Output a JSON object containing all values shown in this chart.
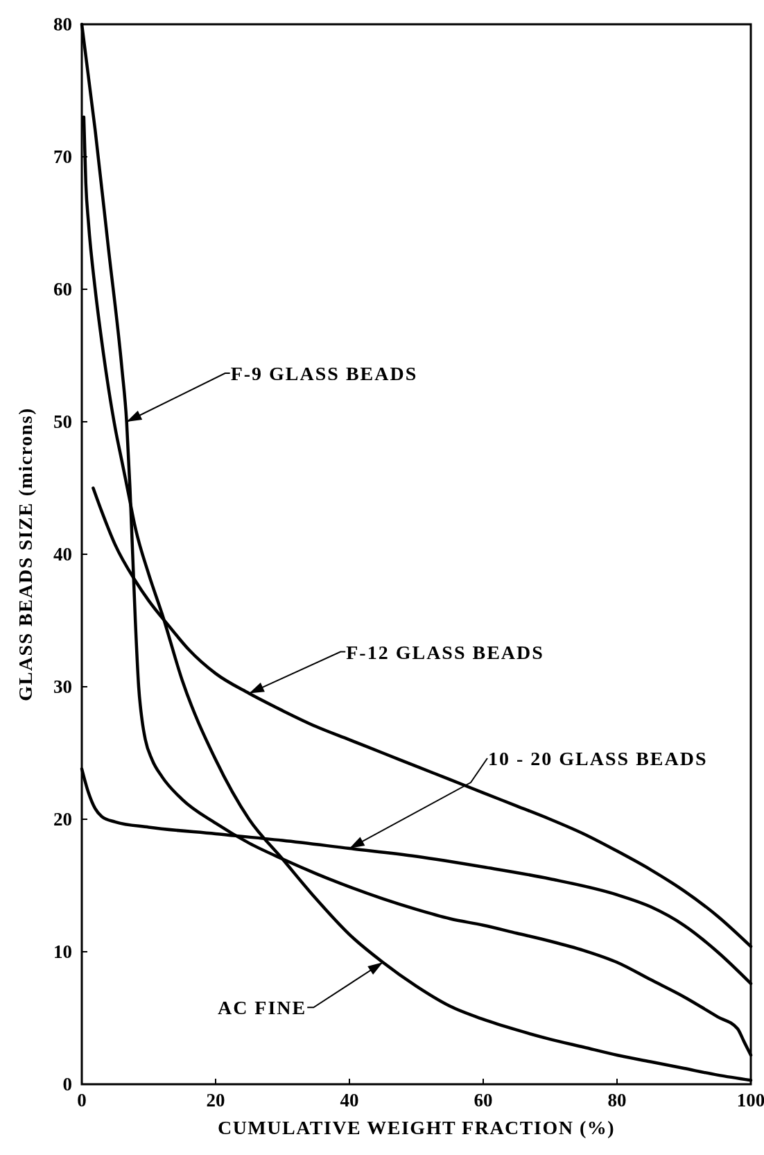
{
  "chart_data": {
    "type": "line",
    "xlabel": "CUMULATIVE WEIGHT FRACTION (%)",
    "ylabel": "GLASS BEADS SIZE (microns)",
    "xlim": [
      0,
      100
    ],
    "ylim": [
      0,
      80
    ],
    "xticks": [
      0,
      20,
      40,
      60,
      80,
      100
    ],
    "yticks": [
      0,
      10,
      20,
      30,
      40,
      50,
      60,
      70,
      80
    ],
    "grid": false,
    "marker": "none",
    "line_style": "solid",
    "series": [
      {
        "color": "#000000",
        "x": [
          0,
          2,
          4,
          6,
          6.7,
          7.2,
          7.6,
          8,
          8.5,
          9,
          9.5,
          10.5,
          12,
          15,
          20,
          25,
          30,
          35,
          40,
          45,
          50,
          55,
          60,
          65,
          70,
          75,
          80,
          85,
          90,
          95,
          98,
          99,
          100
        ],
        "values": [
          80,
          72,
          63,
          54,
          50,
          45,
          40,
          35,
          30,
          27.5,
          26,
          24.5,
          23.2,
          21.5,
          19.7,
          18.2,
          17,
          15.9,
          14.9,
          14,
          13.2,
          12.5,
          12,
          11.4,
          10.8,
          10.1,
          9.2,
          7.9,
          6.6,
          5.1,
          4.2,
          3.2,
          2.2
        ]
      },
      {
        "color": "#000000",
        "x": [
          0.3,
          0.6,
          1,
          2,
          3,
          4,
          5,
          6,
          7,
          8,
          10,
          12,
          15,
          20,
          25,
          30,
          35,
          40,
          45,
          50,
          55,
          60,
          65,
          70,
          75,
          80,
          85,
          90,
          95,
          100
        ],
        "values": [
          73,
          68,
          65,
          60,
          56,
          52.5,
          49.5,
          47,
          44.5,
          42,
          38.5,
          35.5,
          30.5,
          24.5,
          20,
          17,
          14,
          11.3,
          9.2,
          7.4,
          5.9,
          4.9,
          4.1,
          3.4,
          2.8,
          2.2,
          1.7,
          1.2,
          0.7,
          0.3
        ]
      },
      {
        "color": "#000000",
        "x": [
          1.7,
          3,
          5,
          8,
          10,
          13,
          16,
          20,
          25,
          30,
          35,
          40,
          45,
          50,
          55,
          60,
          65,
          70,
          75,
          80,
          85,
          90,
          95,
          100
        ],
        "values": [
          45,
          43.2,
          40.7,
          38,
          36.5,
          34.6,
          32.8,
          31,
          29.5,
          28.2,
          27,
          26,
          25,
          24,
          23,
          22,
          21,
          20,
          18.9,
          17.6,
          16.2,
          14.6,
          12.7,
          10.4
        ]
      },
      {
        "color": "#000000",
        "x": [
          0,
          1,
          2,
          3,
          5,
          10,
          20,
          30,
          40,
          50,
          60,
          70,
          80,
          85,
          90,
          95,
          100
        ],
        "values": [
          23.8,
          22,
          20.8,
          20.2,
          19.8,
          19.4,
          18.9,
          18.4,
          17.8,
          17.2,
          16.4,
          15.5,
          14.3,
          13.4,
          12,
          10,
          7.6
        ]
      }
    ],
    "annotations": [
      {
        "text": "F-9 GLASS BEADS",
        "x": 6.7,
        "y": 50
      },
      {
        "text": "F-12 GLASS BEADS",
        "x": 25,
        "y": 29.5
      },
      {
        "text": "10 - 20 GLASS BEADS",
        "x": 40,
        "y": 17.8
      },
      {
        "text": "AC FINE",
        "x": 45,
        "y": 9.2
      }
    ]
  }
}
